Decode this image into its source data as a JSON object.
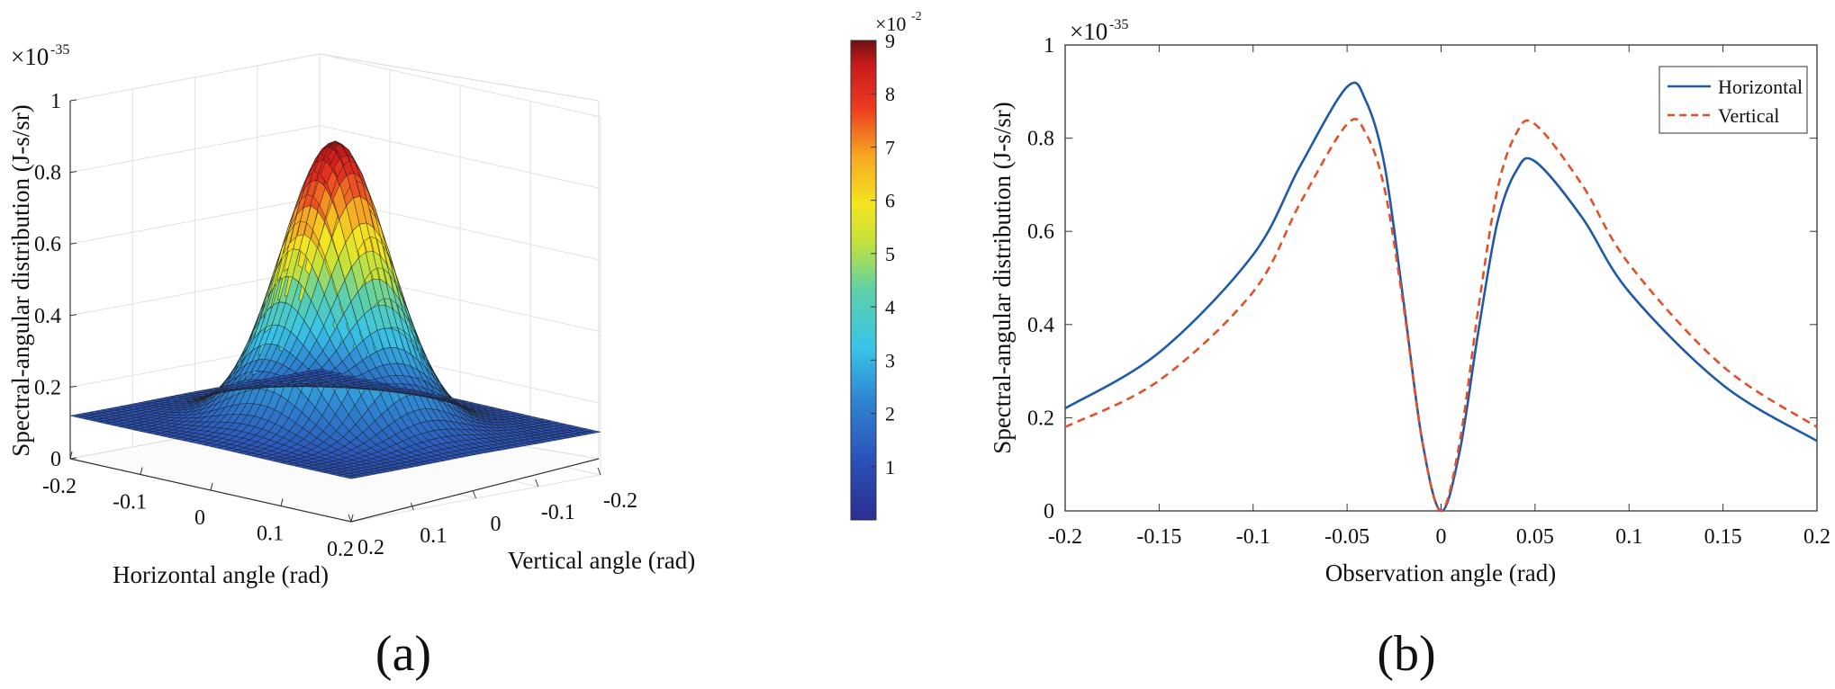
{
  "panels": {
    "a_label": "(a)",
    "b_label": "(b)"
  },
  "chart_data": [
    {
      "id": "a",
      "type": "surface3d",
      "zlabel": "Spectral-angular distribution (J-s/sr)",
      "z_multiplier": "×10",
      "z_exponent": "-35",
      "zlim": [
        0,
        1
      ],
      "z_ticks": [
        "0",
        "0.2",
        "0.4",
        "0.6",
        "0.8",
        "1"
      ],
      "xlabel": "Horizontal angle (rad)",
      "x_ticks": [
        "-0.2",
        "-0.1",
        "0",
        "0.1",
        "0.2"
      ],
      "ylabel": "Vertical angle (rad)",
      "y_ticks": [
        "-0.2",
        "-0.1",
        "0",
        "0.1",
        "0.2"
      ],
      "xlim": [
        -0.2,
        0.2
      ],
      "ylim": [
        -0.2,
        0.2
      ],
      "surface_peak": 0.91,
      "corner_value": 0.12,
      "colormap": "jet",
      "colorbar": {
        "multiplier": "×10",
        "exponent": "-2",
        "ticks": [
          "1",
          "2",
          "3",
          "4",
          "5",
          "6",
          "7",
          "8",
          "9"
        ],
        "range": [
          0,
          9
        ]
      }
    },
    {
      "id": "b",
      "type": "line",
      "xlabel": "Observation angle (rad)",
      "ylabel": "Spectral-angular distribution (J-s/sr)",
      "y_multiplier": "×10",
      "y_exponent": "-35",
      "xlim": [
        -0.2,
        0.2
      ],
      "ylim": [
        0,
        1
      ],
      "x_ticks": [
        "-0.2",
        "-0.15",
        "-0.1",
        "-0.05",
        "0",
        "0.05",
        "0.1",
        "0.15",
        "0.2"
      ],
      "y_ticks": [
        "0",
        "0.2",
        "0.4",
        "0.6",
        "0.8",
        "1"
      ],
      "legend_position": "top-right",
      "series": [
        {
          "name": "Horizontal",
          "color": "#1f5aa6",
          "style": "solid",
          "x": [
            -0.2,
            -0.15,
            -0.1,
            -0.075,
            -0.05,
            -0.04,
            -0.03,
            -0.02,
            -0.01,
            0,
            0.01,
            0.02,
            0.03,
            0.04,
            0.05,
            0.075,
            0.1,
            0.15,
            0.2
          ],
          "y": [
            0.22,
            0.34,
            0.55,
            0.74,
            0.91,
            0.88,
            0.74,
            0.45,
            0.15,
            0.0,
            0.13,
            0.39,
            0.62,
            0.73,
            0.75,
            0.63,
            0.47,
            0.27,
            0.15
          ]
        },
        {
          "name": "Vertical",
          "color": "#e0502a",
          "style": "dashed",
          "x": [
            -0.2,
            -0.15,
            -0.1,
            -0.075,
            -0.05,
            -0.04,
            -0.03,
            -0.02,
            -0.01,
            0,
            0.01,
            0.02,
            0.03,
            0.04,
            0.05,
            0.075,
            0.1,
            0.15,
            0.2
          ],
          "y": [
            0.18,
            0.28,
            0.47,
            0.66,
            0.83,
            0.81,
            0.69,
            0.44,
            0.15,
            0.0,
            0.15,
            0.44,
            0.69,
            0.81,
            0.83,
            0.7,
            0.53,
            0.31,
            0.18
          ]
        }
      ]
    }
  ]
}
